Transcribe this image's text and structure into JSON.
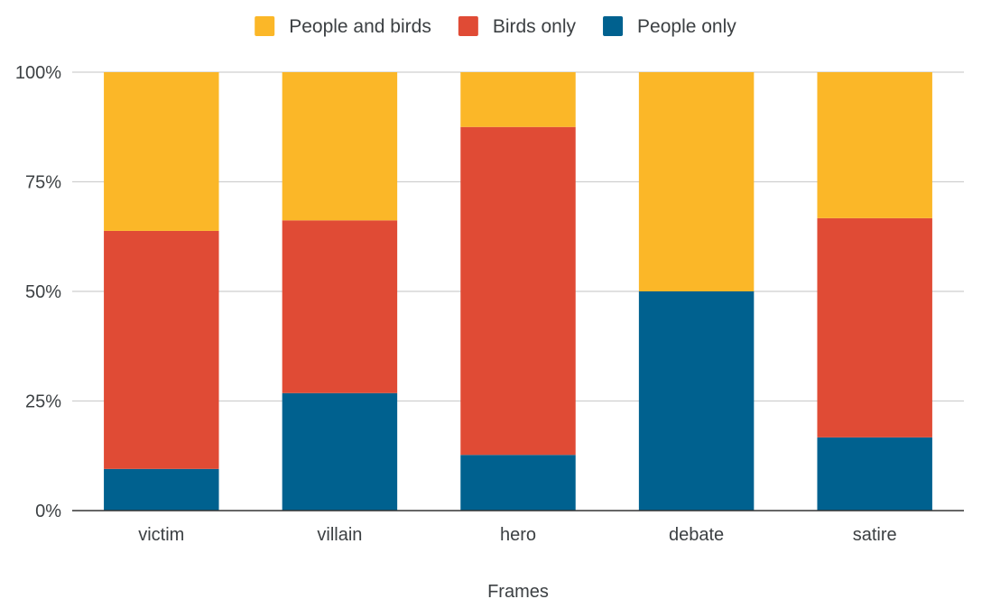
{
  "chart_data": {
    "type": "bar",
    "stacked": true,
    "percent": true,
    "categories": [
      "victim",
      "villain",
      "hero",
      "debate",
      "satire"
    ],
    "series": [
      {
        "name": "People only",
        "color": "#00618f",
        "values": [
          9.5,
          26.8,
          12.7,
          50.0,
          16.7
        ]
      },
      {
        "name": "Birds only",
        "color": "#e04b35",
        "values": [
          54.3,
          39.4,
          74.8,
          0.0,
          50.0
        ]
      },
      {
        "name": "People and birds",
        "color": "#fbb728",
        "values": [
          36.2,
          33.8,
          12.5,
          50.0,
          33.3
        ]
      }
    ],
    "legend": {
      "placement": "top",
      "order": [
        "People and birds",
        "Birds only",
        "People only"
      ]
    },
    "xlabel": "Frames",
    "ylabel": "",
    "ylim": [
      0,
      100
    ],
    "yticks": [
      0,
      25,
      50,
      75,
      100
    ],
    "ytick_labels": [
      "0%",
      "25%",
      "50%",
      "75%",
      "100%"
    ],
    "grid": true
  }
}
